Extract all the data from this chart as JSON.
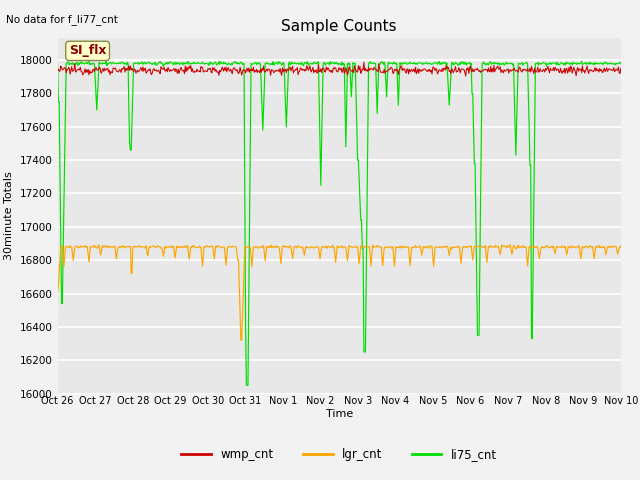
{
  "title": "Sample Counts",
  "top_left_text": "No data for f_li77_cnt",
  "xlabel": "Time",
  "ylabel": "30minute Totals",
  "annotation_text": "SI_flx",
  "ylim": [
    16000,
    18130
  ],
  "yticks": [
    16000,
    16200,
    16400,
    16600,
    16800,
    17000,
    17200,
    17400,
    17600,
    17800,
    18000
  ],
  "xtick_labels": [
    "Oct 26",
    "Oct 27",
    "Oct 28",
    "Oct 29",
    "Oct 30",
    "Oct 31",
    "Nov 1",
    "Nov 2",
    "Nov 3",
    "Nov 4",
    "Nov 5",
    "Nov 6",
    "Nov 7",
    "Nov 8",
    "Nov 9",
    "Nov 10"
  ],
  "bg_color": "#e8e8e8",
  "grid_color": "#ffffff",
  "wmp_color": "#cc0000",
  "lgr_color": "#ffa500",
  "li75_color": "#00dd00",
  "legend_labels": [
    "wmp_cnt",
    "lgr_cnt",
    "li75_cnt"
  ],
  "wmp_base": 17940,
  "lgr_base": 16880,
  "li75_base": 17980
}
